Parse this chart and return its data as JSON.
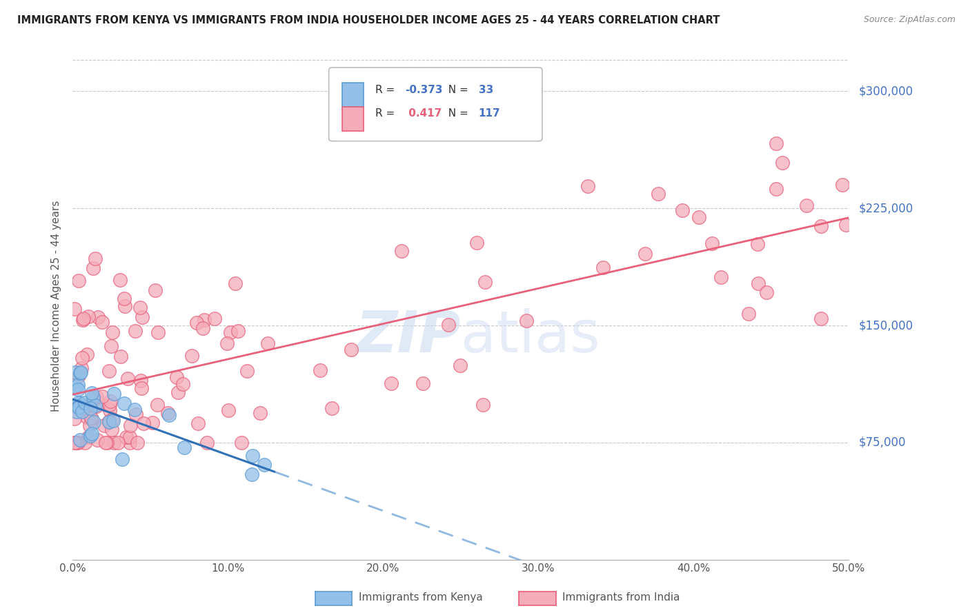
{
  "title": "IMMIGRANTS FROM KENYA VS IMMIGRANTS FROM INDIA HOUSEHOLDER INCOME AGES 25 - 44 YEARS CORRELATION CHART",
  "source": "Source: ZipAtlas.com",
  "xlabel_ticks": [
    "0.0%",
    "10.0%",
    "20.0%",
    "30.0%",
    "40.0%",
    "50.0%"
  ],
  "xlabel_vals": [
    0.0,
    0.1,
    0.2,
    0.3,
    0.4,
    0.5
  ],
  "ylabel": "Householder Income Ages 25 - 44 years",
  "ylabel_ticks": [
    75000,
    150000,
    225000,
    300000
  ],
  "ylabel_tick_labels": [
    "$75,000",
    "$150,000",
    "$225,000",
    "$300,000"
  ],
  "xmin": 0.0,
  "xmax": 0.5,
  "ymin": 0,
  "ymax": 325000,
  "kenya_color": "#92c0e8",
  "kenya_edge_color": "#5b9bd5",
  "india_color": "#f4acba",
  "india_edge_color": "#e8607a",
  "kenya_line_color": "#3070b8",
  "kenya_line_dash_color": "#90b8e0",
  "india_line_color": "#e8607a",
  "kenya_R": -0.373,
  "kenya_N": 33,
  "india_R": 0.417,
  "india_N": 117,
  "legend_label_kenya": "Immigrants from Kenya",
  "legend_label_india": "Immigrants from India",
  "title_fontsize": 10.5,
  "source_fontsize": 9,
  "axis_label_color": "#4472c4",
  "watermark_color": "#c8d8f0",
  "legend_R_color_kenya": "#4472c4",
  "legend_R_color_india": "#e8607a",
  "legend_N_color": "#4472c4"
}
